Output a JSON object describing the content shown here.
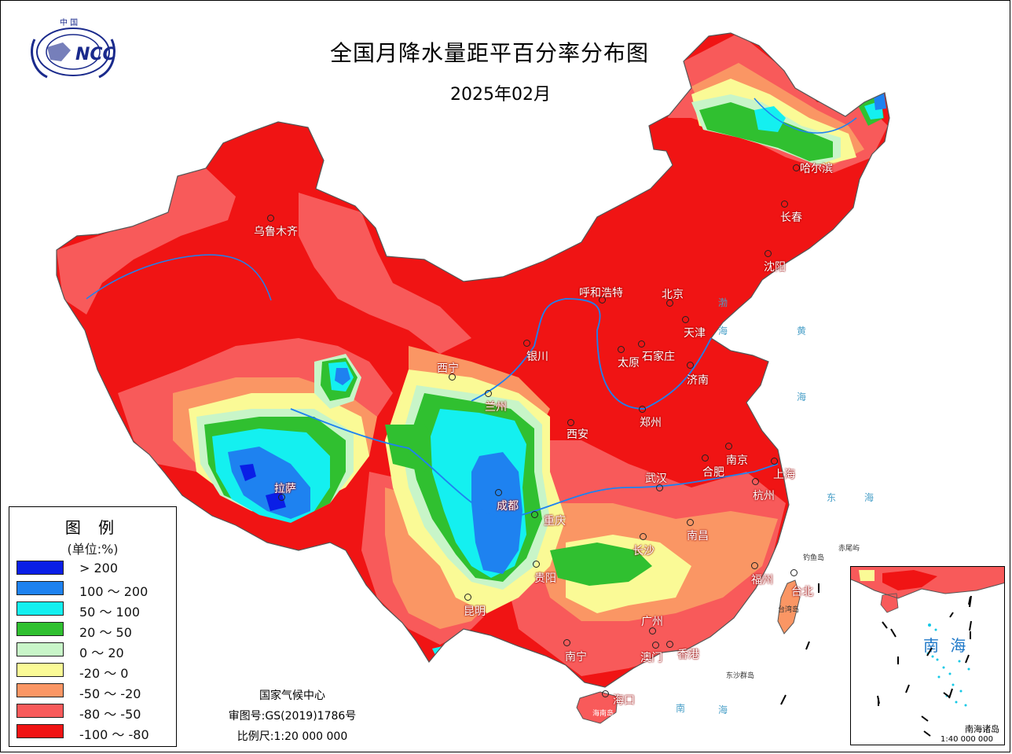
{
  "header": {
    "title": "全国月降水量距平百分率分布图",
    "subtitle": "2025年02月",
    "logo_text": "NCC",
    "logo_top_text": "中 国"
  },
  "legend": {
    "title": "图 例",
    "unit": "(单位:%)",
    "items": [
      {
        "label": "> 200",
        "color": "#0a1ee6"
      },
      {
        "label": "100 ～ 200",
        "color": "#1e82f0"
      },
      {
        "label": "50 ～ 100",
        "color": "#14f0f0"
      },
      {
        "label": "20 ～ 50",
        "color": "#30c030"
      },
      {
        "label": "0 ～ 20",
        "color": "#c8f5c8"
      },
      {
        "label": "-20 ～ 0",
        "color": "#fafa96"
      },
      {
        "label": "-50 ～ -20",
        "color": "#fa9664"
      },
      {
        "label": "-80 ～ -50",
        "color": "#f85a5a"
      },
      {
        "label": "-100 ～ -80",
        "color": "#f01414"
      }
    ]
  },
  "credits": {
    "agency": "国家气候中心",
    "approval": "审图号:GS(2019)1786号",
    "scale": "比例尺:1:20 000 000"
  },
  "cities": [
    {
      "name": "哈尔滨"
    },
    {
      "name": "长春"
    },
    {
      "name": "沈阳"
    },
    {
      "name": "乌鲁木齐"
    },
    {
      "name": "呼和浩特"
    },
    {
      "name": "北京"
    },
    {
      "name": "天津"
    },
    {
      "name": "银川"
    },
    {
      "name": "太原"
    },
    {
      "name": "石家庄"
    },
    {
      "name": "西宁"
    },
    {
      "name": "济南"
    },
    {
      "name": "兰州"
    },
    {
      "name": "西安"
    },
    {
      "name": "郑州"
    },
    {
      "name": "南京"
    },
    {
      "name": "合肥"
    },
    {
      "name": "上海"
    },
    {
      "name": "拉萨"
    },
    {
      "name": "武汉"
    },
    {
      "name": "杭州"
    },
    {
      "name": "成都"
    },
    {
      "name": "重庆"
    },
    {
      "name": "南昌"
    },
    {
      "name": "长沙"
    },
    {
      "name": "贵阳"
    },
    {
      "name": "福州"
    },
    {
      "name": "台北"
    },
    {
      "name": "昆明"
    },
    {
      "name": "广州"
    },
    {
      "name": "南宁"
    },
    {
      "name": "澳门"
    },
    {
      "name": "香港"
    },
    {
      "name": "海口"
    }
  ],
  "seas": {
    "bohai": "渤",
    "huang1": "黄",
    "huang2": "海",
    "dong1": "东",
    "dong2": "海",
    "nan1": "南",
    "nan2": "海",
    "hai_bo": "海"
  },
  "islands": {
    "diaoyu": "钓鱼岛",
    "chiwei": "赤尾屿",
    "taiwan": "台湾岛",
    "dongsha": "东沙群岛",
    "hainan": "海南岛"
  },
  "inset": {
    "sea": "南 海",
    "name": "南海诸岛",
    "scale": "1:40 000 000"
  }
}
